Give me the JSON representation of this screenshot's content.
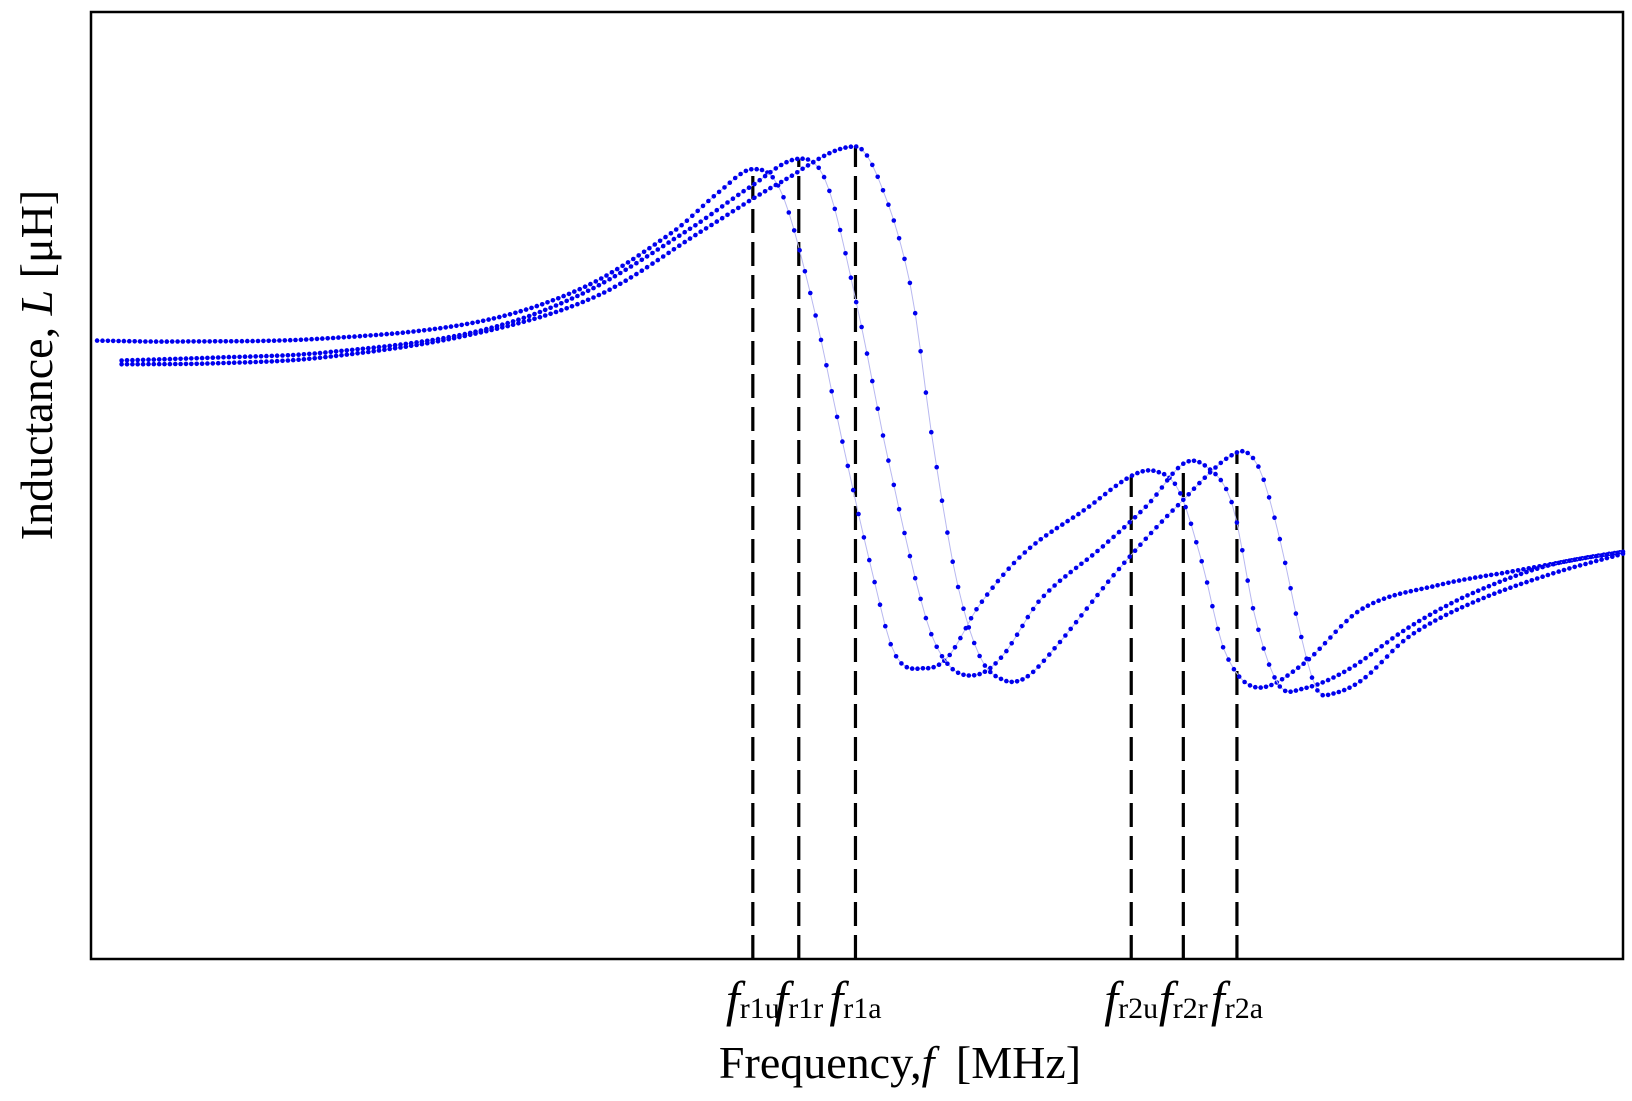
{
  "chart_data": {
    "type": "scatter",
    "xlabel": "Frequency,",
    "xlabel_symbol": "f",
    "xlabel_unit": "[MHz]",
    "ylabel": "Inductance,",
    "ylabel_symbol": "L",
    "ylabel_unit": "[μH]",
    "xlim": [
      0,
      1
    ],
    "ylim": [
      0,
      1
    ],
    "grid": false,
    "axis_ticks_shown": false,
    "marker_color": "#0000ee",
    "line_color": "#b8b8f0",
    "marker_lines": [
      {
        "name": "fr1u",
        "main": "f",
        "sub": "r1u",
        "x": 0.432
      },
      {
        "name": "fr1r",
        "main": "f",
        "sub": "r1r",
        "x": 0.462
      },
      {
        "name": "fr1a",
        "main": "f",
        "sub": "r1a",
        "x": 0.499
      },
      {
        "name": "fr2u",
        "main": "f",
        "sub": "r2u",
        "x": 0.679
      },
      {
        "name": "fr2r",
        "main": "f",
        "sub": "r2r",
        "x": 0.713
      },
      {
        "name": "fr2a",
        "main": "f",
        "sub": "r2a",
        "x": 0.748
      }
    ],
    "series": [
      {
        "x0": 0.004,
        "x": [
          0.004,
          0.05,
          0.15,
          0.25,
          0.32,
          0.38,
          0.41,
          0.432,
          0.45,
          0.47,
          0.49,
          0.51,
          0.525,
          0.545,
          0.56,
          0.58,
          0.61,
          0.65,
          0.679,
          0.695,
          0.71,
          0.725,
          0.74,
          0.76,
          0.79,
          0.83,
          0.88,
          0.93,
          0.98,
          1.0
        ],
        "y": [
          0.653,
          0.652,
          0.655,
          0.672,
          0.708,
          0.768,
          0.81,
          0.834,
          0.812,
          0.7,
          0.55,
          0.408,
          0.321,
          0.307,
          0.32,
          0.374,
          0.43,
          0.476,
          0.51,
          0.515,
          0.495,
          0.42,
          0.325,
          0.287,
          0.31,
          0.37,
          0.395,
          0.41,
          0.425,
          0.43
        ]
      },
      {
        "x0": 0.02,
        "x": [
          0.02,
          0.08,
          0.15,
          0.25,
          0.32,
          0.39,
          0.43,
          0.462,
          0.48,
          0.5,
          0.52,
          0.545,
          0.56,
          0.578,
          0.595,
          0.62,
          0.66,
          0.69,
          0.713,
          0.728,
          0.745,
          0.76,
          0.775,
          0.79,
          0.82,
          0.86,
          0.9,
          0.95,
          1.0
        ],
        "y": [
          0.632,
          0.635,
          0.64,
          0.662,
          0.702,
          0.77,
          0.815,
          0.845,
          0.82,
          0.69,
          0.53,
          0.36,
          0.31,
          0.3,
          0.32,
          0.38,
          0.435,
          0.48,
          0.523,
          0.52,
          0.48,
          0.36,
          0.29,
          0.285,
          0.305,
          0.35,
          0.385,
          0.415,
          0.43
        ]
      },
      {
        "x0": 0.02,
        "x": [
          0.02,
          0.08,
          0.15,
          0.25,
          0.33,
          0.4,
          0.45,
          0.499,
          0.515,
          0.535,
          0.55,
          0.565,
          0.58,
          0.595,
          0.61,
          0.63,
          0.67,
          0.71,
          0.748,
          0.762,
          0.775,
          0.79,
          0.8,
          0.81,
          0.83,
          0.86,
          0.9,
          0.95,
          1.0
        ],
        "y": [
          0.628,
          0.629,
          0.635,
          0.66,
          0.7,
          0.77,
          0.82,
          0.858,
          0.82,
          0.71,
          0.54,
          0.4,
          0.32,
          0.295,
          0.297,
          0.33,
          0.41,
          0.48,
          0.535,
          0.52,
          0.45,
          0.34,
          0.285,
          0.28,
          0.295,
          0.34,
          0.375,
          0.405,
          0.428
        ]
      }
    ]
  }
}
